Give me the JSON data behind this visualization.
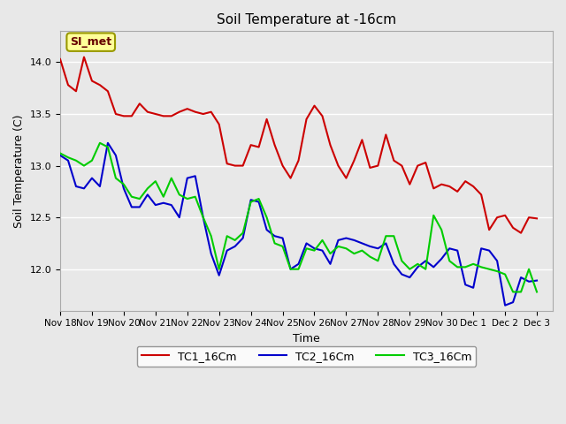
{
  "title": "Soil Temperature at -16cm",
  "xlabel": "Time",
  "ylabel": "Soil Temperature (C)",
  "ylim": [
    11.6,
    14.3
  ],
  "xlim": [
    0,
    15.5
  ],
  "bg_color": "#e8e8e8",
  "plot_bg": "#e8e8e8",
  "grid_color": "#ffffff",
  "annotation_text": "SI_met",
  "annotation_bg": "#ffff99",
  "annotation_border": "#999900",
  "xtick_labels": [
    "Nov 18",
    "Nov 19",
    "Nov 20",
    "Nov 21",
    "Nov 22",
    "Nov 23",
    "Nov 24",
    "Nov 25",
    "Nov 26",
    "Nov 27",
    "Nov 28",
    "Nov 29",
    "Nov 30",
    "Dec 1",
    "Dec 2",
    "Dec 3"
  ],
  "tc1_color": "#cc0000",
  "tc2_color": "#0000cc",
  "tc3_color": "#00cc00",
  "tc1_x": [
    0,
    0.25,
    0.5,
    0.75,
    1.0,
    1.25,
    1.5,
    1.75,
    2.0,
    2.25,
    2.5,
    2.75,
    3.0,
    3.25,
    3.5,
    3.75,
    4.0,
    4.25,
    4.5,
    4.75,
    5.0,
    5.25,
    5.5,
    5.75,
    6.0,
    6.25,
    6.5,
    6.75,
    7.0,
    7.25,
    7.5,
    7.75,
    8.0,
    8.25,
    8.5,
    8.75,
    9.0,
    9.25,
    9.5,
    9.75,
    10.0,
    10.25,
    10.5,
    10.75,
    11.0,
    11.25,
    11.5,
    11.75,
    12.0,
    12.25,
    12.5,
    12.75,
    13.0,
    13.25,
    13.5,
    13.75,
    14.0,
    14.25,
    14.5,
    14.75,
    15.0
  ],
  "tc1_y": [
    14.03,
    13.78,
    13.72,
    14.05,
    13.82,
    13.78,
    13.72,
    13.5,
    13.48,
    13.48,
    13.6,
    13.52,
    13.5,
    13.48,
    13.48,
    13.52,
    13.55,
    13.52,
    13.5,
    13.52,
    13.4,
    13.02,
    13.0,
    13.0,
    13.2,
    13.18,
    13.45,
    13.2,
    13.0,
    12.88,
    13.05,
    13.45,
    13.58,
    13.48,
    13.2,
    13.0,
    12.88,
    13.05,
    13.25,
    12.98,
    13.0,
    13.3,
    13.05,
    13.0,
    12.82,
    13.0,
    13.03,
    12.78,
    12.82,
    12.8,
    12.75,
    12.85,
    12.8,
    12.72,
    12.38,
    12.5,
    12.52,
    12.4,
    12.35,
    12.5,
    12.49
  ],
  "tc2_x": [
    0,
    0.25,
    0.5,
    0.75,
    1.0,
    1.25,
    1.5,
    1.75,
    2.0,
    2.25,
    2.5,
    2.75,
    3.0,
    3.25,
    3.5,
    3.75,
    4.0,
    4.25,
    4.5,
    4.75,
    5.0,
    5.25,
    5.5,
    5.75,
    6.0,
    6.25,
    6.5,
    6.75,
    7.0,
    7.25,
    7.5,
    7.75,
    8.0,
    8.25,
    8.5,
    8.75,
    9.0,
    9.25,
    9.5,
    9.75,
    10.0,
    10.25,
    10.5,
    10.75,
    11.0,
    11.25,
    11.5,
    11.75,
    12.0,
    12.25,
    12.5,
    12.75,
    13.0,
    13.25,
    13.5,
    13.75,
    14.0,
    14.25,
    14.5,
    14.75,
    15.0
  ],
  "tc2_y": [
    13.1,
    13.05,
    12.8,
    12.78,
    12.88,
    12.8,
    13.22,
    13.1,
    12.78,
    12.6,
    12.6,
    12.72,
    12.62,
    12.64,
    12.62,
    12.5,
    12.88,
    12.9,
    12.5,
    12.15,
    11.94,
    12.18,
    12.22,
    12.3,
    12.67,
    12.65,
    12.38,
    12.32,
    12.3,
    12.0,
    12.05,
    12.25,
    12.2,
    12.18,
    12.05,
    12.28,
    12.3,
    12.28,
    12.25,
    12.22,
    12.2,
    12.25,
    12.05,
    11.95,
    11.92,
    12.02,
    12.08,
    12.02,
    12.1,
    12.2,
    12.18,
    11.85,
    11.82,
    12.2,
    12.18,
    12.08,
    11.65,
    11.68,
    11.92,
    11.88,
    11.89
  ],
  "tc3_x": [
    0,
    0.25,
    0.5,
    0.75,
    1.0,
    1.25,
    1.5,
    1.75,
    2.0,
    2.25,
    2.5,
    2.75,
    3.0,
    3.25,
    3.5,
    3.75,
    4.0,
    4.25,
    4.5,
    4.75,
    5.0,
    5.25,
    5.5,
    5.75,
    6.0,
    6.25,
    6.5,
    6.75,
    7.0,
    7.25,
    7.5,
    7.75,
    8.0,
    8.25,
    8.5,
    8.75,
    9.0,
    9.25,
    9.5,
    9.75,
    10.0,
    10.25,
    10.5,
    10.75,
    11.0,
    11.25,
    11.5,
    11.75,
    12.0,
    12.25,
    12.5,
    12.75,
    13.0,
    13.25,
    13.5,
    13.75,
    14.0,
    14.25,
    14.5,
    14.75,
    15.0
  ],
  "tc3_y": [
    13.12,
    13.08,
    13.05,
    13.0,
    13.05,
    13.22,
    13.18,
    12.88,
    12.82,
    12.7,
    12.68,
    12.78,
    12.85,
    12.7,
    12.88,
    12.72,
    12.68,
    12.7,
    12.5,
    12.32,
    12.0,
    12.32,
    12.28,
    12.35,
    12.65,
    12.68,
    12.5,
    12.25,
    12.22,
    12.0,
    12.0,
    12.2,
    12.18,
    12.28,
    12.15,
    12.22,
    12.2,
    12.15,
    12.18,
    12.12,
    12.08,
    12.32,
    12.32,
    12.08,
    12.0,
    12.05,
    12.0,
    12.52,
    12.38,
    12.08,
    12.02,
    12.02,
    12.05,
    12.02,
    12.0,
    11.98,
    11.95,
    11.78,
    11.78,
    12.0,
    11.78
  ]
}
